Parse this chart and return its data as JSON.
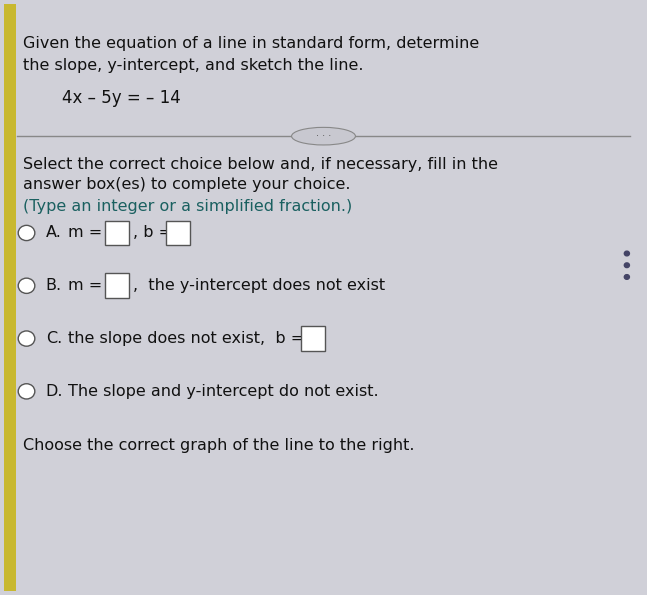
{
  "background_color": "#d0d0d8",
  "panel_color": "#d8d8e0",
  "text_color": "#111111",
  "title_line1": "Given the equation of a line in standard form, determine",
  "title_line2": "the slope, y-intercept, and sketch the line.",
  "equation": "4x – 5y = – 14",
  "select_text": "Select the correct choice below and, if necessary, fill in the",
  "select_text2": "answer box(es) to complete your choice.",
  "type_text": "(Type an integer or a simplified fraction.)",
  "choose_text": "Choose the correct graph of the line to the right.",
  "font_size_title": 11.5,
  "font_size_eq": 12.0,
  "font_size_body": 11.5,
  "font_size_option": 11.5,
  "teal_color": "#1a6060",
  "radio_edge_color": "#555555",
  "box_edge_color": "#555555",
  "divider_color": "#888888",
  "dot_color": "#444466",
  "yellow_strip_color": "#c8b830",
  "btn_face_color": "#c8c8d0",
  "btn_edge_color": "#888888"
}
